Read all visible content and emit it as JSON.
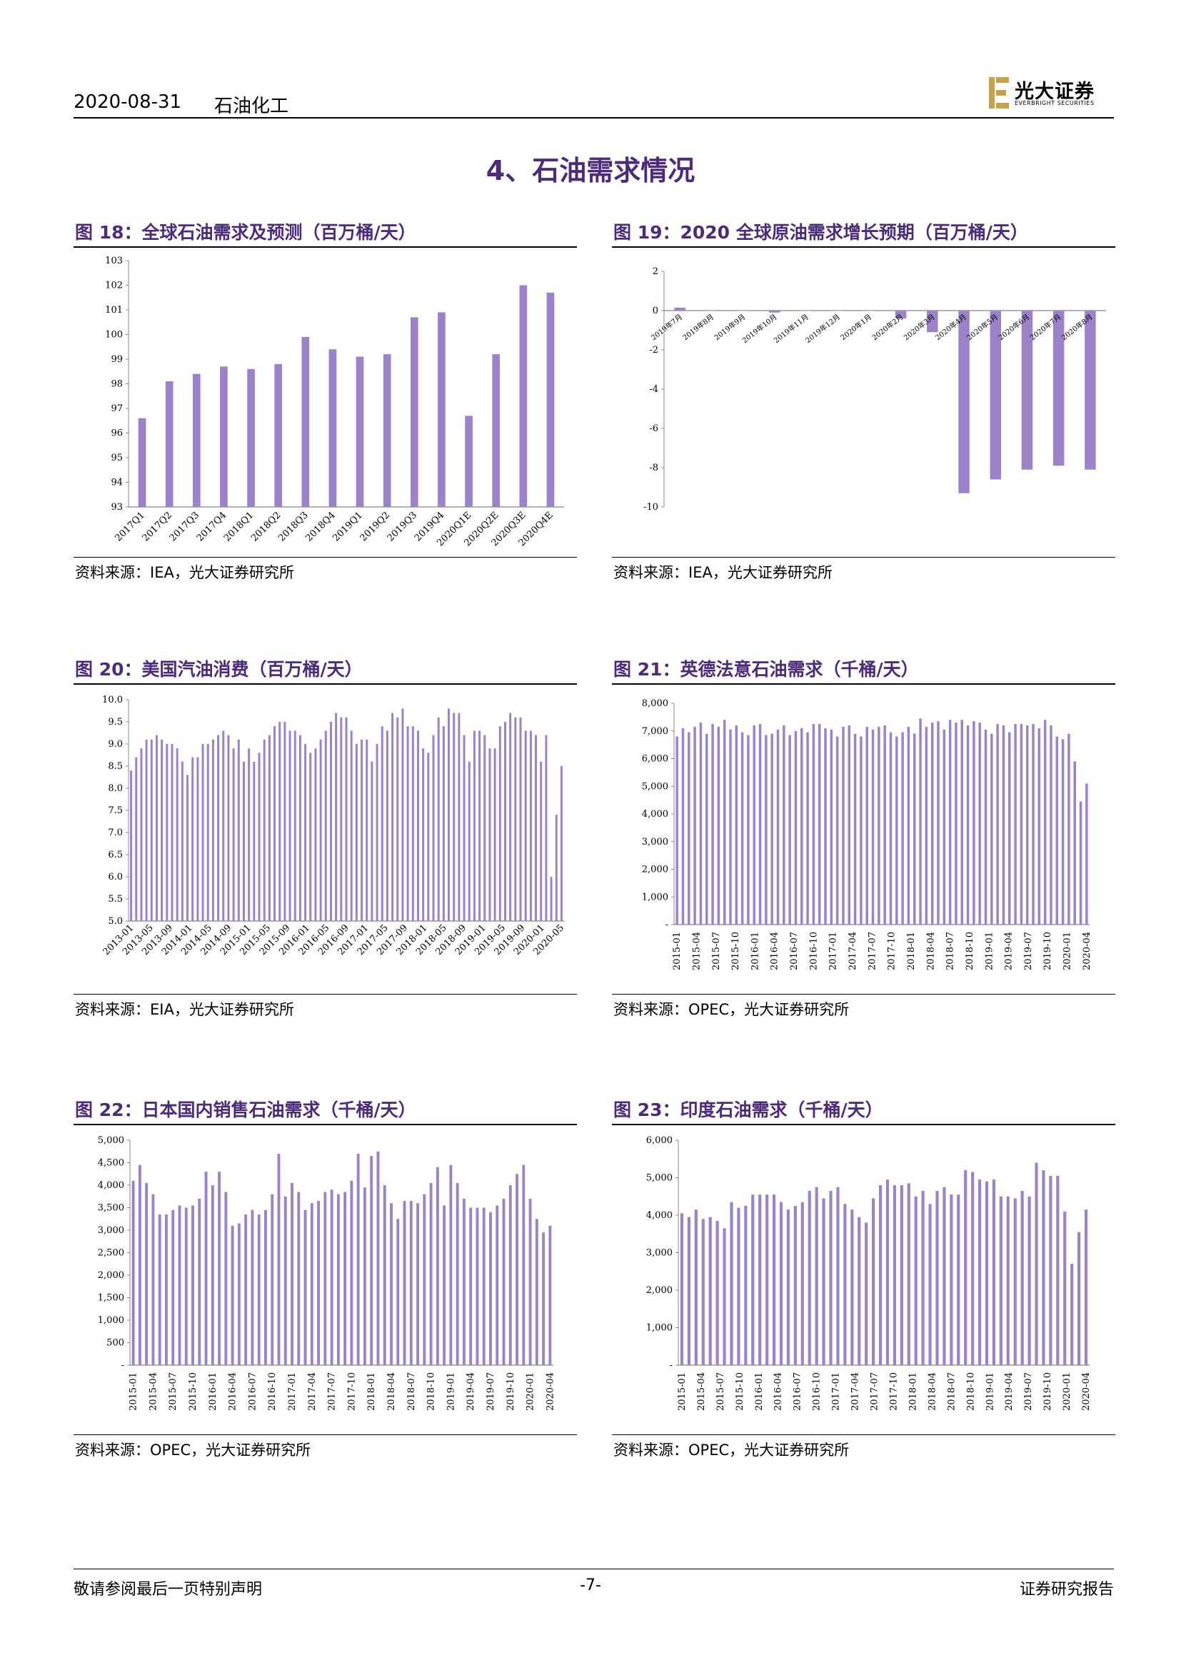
{
  "header": {
    "date": "2020-08-31",
    "sector": "石油化工",
    "logo_cn": "光大证券",
    "logo_en": "EVERBRIGHT SECURITIES"
  },
  "section_title": "4、石油需求情况",
  "figures": [
    {
      "id": "fig18",
      "title": "图 18：全球石油需求及预测（百万桶/天）",
      "source": "资料来源：IEA，光大证券研究所"
    },
    {
      "id": "fig19",
      "title": "图 19：2020 全球原油需求增长预期（百万桶/天）",
      "source": "资料来源：IEA，光大证券研究所"
    },
    {
      "id": "fig20",
      "title": "图 20：美国汽油消费（百万桶/天）",
      "source": "资料来源：EIA，光大证券研究所"
    },
    {
      "id": "fig21",
      "title": "图 21：英德法意石油需求（千桶/天）",
      "source": "资料来源：OPEC，光大证券研究所"
    },
    {
      "id": "fig22",
      "title": "图 22：日本国内销售石油需求（千桶/天）",
      "source": "资料来源：OPEC，光大证券研究所"
    },
    {
      "id": "fig23",
      "title": "图 23：印度石油需求（千桶/天）",
      "source": "资料来源：OPEC，光大证券研究所"
    }
  ],
  "footer": {
    "left": "敬请参阅最后一页特别声明",
    "page": "-7-",
    "right": "证券研究报告"
  },
  "colors": {
    "bar": "#9b82c9",
    "title": "#4d2a7a"
  },
  "chart_data": [
    {
      "id": "fig18",
      "type": "bar",
      "categories": [
        "2017Q1",
        "2017Q2",
        "2017Q3",
        "2017Q4",
        "2018Q1",
        "2018Q2",
        "2018Q3",
        "2018Q4",
        "2019Q1",
        "2019Q2",
        "2019Q3",
        "2019Q4",
        "2020Q1E",
        "2020Q2E",
        "2020Q3E",
        "2020Q4E"
      ],
      "values": [
        96.6,
        98.1,
        98.4,
        98.7,
        98.6,
        98.8,
        99.9,
        99.4,
        99.1,
        99.2,
        100.7,
        100.9,
        96.7,
        99.2,
        102.0,
        101.7
      ],
      "yticks": [
        "93",
        "94",
        "95",
        "96",
        "97",
        "98",
        "99",
        "100",
        "101",
        "102",
        "103"
      ],
      "ylim": [
        93,
        103
      ],
      "title": "",
      "xlabel": "",
      "ylabel": ""
    },
    {
      "id": "fig19",
      "type": "bar",
      "categories": [
        "2019年7月",
        "2019年8月",
        "2019年9月",
        "2019年10月",
        "2019年11月",
        "2019年12月",
        "2020年1月",
        "2020年2月",
        "2020年3月",
        "2020年4月",
        "2020年5月",
        "2020年6月",
        "2020年7月",
        "2020年8月"
      ],
      "values": [
        0.15,
        0.0,
        0.0,
        -0.1,
        0.0,
        0.0,
        0.0,
        -0.4,
        -1.1,
        -9.3,
        -8.6,
        -8.1,
        -7.9,
        -8.1
      ],
      "yticks": [
        "2",
        "0",
        "-2",
        "-4",
        "-6",
        "-8",
        "-10"
      ],
      "ylim": [
        -10,
        2
      ],
      "title": "",
      "xlabel": "",
      "ylabel": ""
    },
    {
      "id": "fig20",
      "type": "bar",
      "tick_labels": [
        "2013-01",
        "2013-05",
        "2013-09",
        "2014-01",
        "2014-05",
        "2014-09",
        "2015-01",
        "2015-05",
        "2015-09",
        "2016-01",
        "2016-05",
        "2016-09",
        "2017-01",
        "2017-05",
        "2017-09",
        "2018-01",
        "2018-05",
        "2018-09",
        "2019-01",
        "2019-05",
        "2019-09",
        "2020-01",
        "2020-05"
      ],
      "values": [
        8.4,
        8.7,
        8.9,
        9.1,
        9.1,
        9.2,
        9.1,
        9.0,
        9.0,
        8.9,
        8.6,
        8.3,
        8.7,
        8.7,
        9.0,
        9.0,
        9.1,
        9.2,
        9.3,
        9.2,
        8.9,
        9.1,
        8.6,
        8.9,
        8.6,
        8.8,
        9.1,
        9.2,
        9.4,
        9.5,
        9.5,
        9.3,
        9.3,
        9.2,
        9.0,
        8.8,
        8.9,
        9.1,
        9.3,
        9.5,
        9.7,
        9.6,
        9.6,
        9.3,
        9.0,
        9.1,
        9.1,
        8.6,
        9.0,
        9.4,
        9.3,
        9.7,
        9.6,
        9.8,
        9.4,
        9.4,
        9.3,
        8.9,
        8.8,
        9.2,
        9.6,
        9.4,
        9.8,
        9.7,
        9.7,
        9.2,
        8.6,
        9.3,
        9.3,
        9.2,
        8.9,
        8.9,
        9.4,
        9.5,
        9.7,
        9.6,
        9.6,
        9.3,
        9.3,
        9.2,
        8.6,
        9.2,
        6.0,
        7.4,
        8.5
      ],
      "yticks": [
        "5.0",
        "5.5",
        "6.0",
        "6.5",
        "7.0",
        "7.5",
        "8.0",
        "8.5",
        "9.0",
        "9.5",
        "10.0"
      ],
      "ylim": [
        5,
        10
      ],
      "title": "",
      "xlabel": "",
      "ylabel": ""
    },
    {
      "id": "fig21",
      "type": "bar",
      "tick_labels": [
        "2015-01",
        "2015-04",
        "2015-07",
        "2015-10",
        "2016-01",
        "2016-04",
        "2016-07",
        "2016-10",
        "2017-01",
        "2017-04",
        "2017-07",
        "2017-10",
        "2018-01",
        "2018-04",
        "2018-07",
        "2018-10",
        "2019-01",
        "2019-04",
        "2019-07",
        "2019-10",
        "2020-01",
        "2020-04"
      ],
      "values": [
        6800,
        7100,
        6950,
        7150,
        7300,
        6900,
        7250,
        7150,
        7400,
        7050,
        7200,
        6950,
        6850,
        7200,
        7250,
        6850,
        6900,
        7050,
        7200,
        6850,
        7000,
        7100,
        6950,
        7250,
        7250,
        7100,
        7050,
        6800,
        7150,
        7200,
        6900,
        6800,
        7150,
        7050,
        7150,
        7200,
        6950,
        6800,
        6950,
        7150,
        6900,
        7450,
        7150,
        7300,
        7350,
        7050,
        7400,
        7300,
        7400,
        7200,
        7350,
        7300,
        7050,
        6900,
        7250,
        7200,
        6950,
        7250,
        7250,
        7200,
        7250,
        7100,
        7400,
        7200,
        6800,
        6700,
        6900,
        5900,
        4450,
        5100
      ],
      "yticks": [
        "8,000",
        "7,000",
        "6,000",
        "5,000",
        "4,000",
        "3,000",
        "2,000",
        "1,000",
        "-"
      ],
      "ylim": [
        0,
        8000
      ],
      "title": "",
      "xlabel": "",
      "ylabel": ""
    },
    {
      "id": "fig22",
      "type": "bar",
      "tick_labels": [
        "2015-01",
        "2015-04",
        "2015-07",
        "2015-10",
        "2016-01",
        "2016-04",
        "2016-07",
        "2016-10",
        "2017-01",
        "2017-04",
        "2017-07",
        "2017-10",
        "2018-01",
        "2018-04",
        "2018-07",
        "2018-10",
        "2019-01",
        "2019-04",
        "2019-07",
        "2019-10",
        "2020-01",
        "2020-04"
      ],
      "values": [
        4100,
        4450,
        4050,
        3800,
        3350,
        3350,
        3450,
        3550,
        3500,
        3550,
        3700,
        4300,
        4000,
        4300,
        3850,
        3100,
        3150,
        3350,
        3450,
        3350,
        3450,
        3800,
        4700,
        3750,
        4050,
        3850,
        3450,
        3600,
        3650,
        3850,
        3900,
        3800,
        3850,
        4100,
        4700,
        3950,
        4650,
        4750,
        4000,
        3600,
        3250,
        3650,
        3650,
        3600,
        3800,
        4050,
        4400,
        3550,
        4450,
        4050,
        3700,
        3500,
        3500,
        3500,
        3400,
        3550,
        3700,
        4000,
        4250,
        4450,
        3700,
        3250,
        2950,
        3100
      ],
      "yticks": [
        "5,000",
        "4,500",
        "4,000",
        "3,500",
        "3,000",
        "2,500",
        "2,000",
        "1,500",
        "1,000",
        "500",
        "-"
      ],
      "ylim": [
        0,
        5000
      ],
      "title": "",
      "xlabel": "",
      "ylabel": ""
    },
    {
      "id": "fig23",
      "type": "bar",
      "tick_labels": [
        "2015-01",
        "2015-04",
        "2015-07",
        "2015-10",
        "2016-01",
        "2016-04",
        "2016-07",
        "2016-10",
        "2017-01",
        "2017-04",
        "2017-07",
        "2017-10",
        "2018-01",
        "2018-04",
        "2018-07",
        "2018-10",
        "2019-01",
        "2019-04",
        "2019-07",
        "2019-10",
        "2020-01",
        "2020-04"
      ],
      "values": [
        4050,
        3950,
        4150,
        3900,
        3950,
        3850,
        3650,
        4350,
        4200,
        4250,
        4550,
        4550,
        4550,
        4550,
        4350,
        4150,
        4250,
        4350,
        4650,
        4750,
        4450,
        4650,
        4750,
        4300,
        4150,
        3950,
        3800,
        4450,
        4800,
        4950,
        4800,
        4800,
        4850,
        4500,
        4650,
        4300,
        4650,
        4750,
        4550,
        4550,
        5200,
        5150,
        4950,
        4900,
        4950,
        4500,
        4500,
        4450,
        4650,
        4500,
        5400,
        5200,
        5050,
        5050,
        4100,
        2700,
        3550,
        4150
      ],
      "yticks": [
        "6,000",
        "5,000",
        "4,000",
        "3,000",
        "2,000",
        "1,000",
        "-"
      ],
      "ylim": [
        0,
        6000
      ],
      "title": "",
      "xlabel": "",
      "ylabel": ""
    }
  ]
}
